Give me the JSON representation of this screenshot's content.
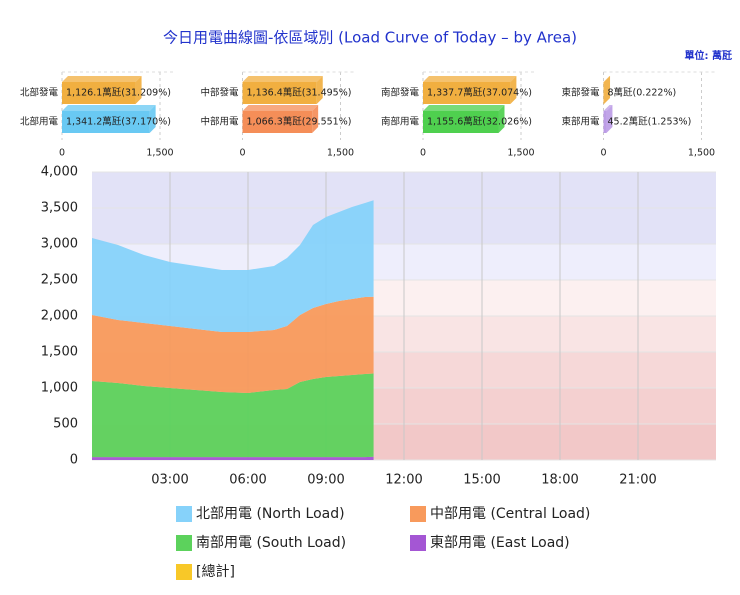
{
  "title": "今日用電曲線圖-依區域別 (Load Curve of Today – by Area)",
  "unit": "單位: 萬瓩",
  "chart_data": [
    {
      "type": "hbar",
      "categories": [
        "北部發電",
        "北部用電"
      ],
      "values": [
        1126.1,
        1341.2
      ],
      "value_labels": [
        "1,126.1萬瓩(31.209%)",
        "1,341.2萬瓩(37.170%)"
      ],
      "colors": [
        "#f0a830",
        "#5cc4f2"
      ],
      "xlim": [
        0,
        1500
      ],
      "xticks": [
        0,
        {
          "value": 1500,
          "label": "1,500"
        }
      ]
    },
    {
      "type": "hbar",
      "categories": [
        "中部發電",
        "中部用電"
      ],
      "values": [
        1136.4,
        1066.3
      ],
      "value_labels": [
        "1,136.4萬瓩(31.495%)",
        "1,066.3萬瓩(29.551%)"
      ],
      "colors": [
        "#f0a830",
        "#f4844a"
      ],
      "xlim": [
        0,
        1500
      ],
      "xticks": [
        0,
        {
          "value": 1500,
          "label": "1,500"
        }
      ]
    },
    {
      "type": "hbar",
      "categories": [
        "南部發電",
        "南部用電"
      ],
      "values": [
        1337.7,
        1155.6
      ],
      "value_labels": [
        "1,337.7萬瓩(37.074%)",
        "1,155.6萬瓩(32.026%)"
      ],
      "colors": [
        "#f0a830",
        "#40cc40"
      ],
      "xlim": [
        0,
        1500
      ],
      "xticks": [
        0,
        {
          "value": 1500,
          "label": "1,500"
        }
      ]
    },
    {
      "type": "hbar",
      "categories": [
        "東部發電",
        "東部用電"
      ],
      "values": [
        8,
        45.2
      ],
      "value_labels": [
        "8萬瓩(0.222%)",
        "45.2萬瓩(1.253%)"
      ],
      "colors": [
        "#f0a830",
        "#b694e4"
      ],
      "xlim": [
        0,
        1500
      ],
      "xticks": [
        0,
        {
          "value": 1500,
          "label": "1,500"
        }
      ]
    },
    {
      "type": "stacked_area",
      "x": [
        0,
        1,
        2,
        3,
        4,
        5,
        6,
        7,
        7.5,
        8,
        8.5,
        9,
        9.5,
        10,
        10.5,
        10.83
      ],
      "xlim": [
        0,
        24
      ],
      "xticks": [
        {
          "value": 3,
          "label": "03:00"
        },
        {
          "value": 6,
          "label": "06:00"
        },
        {
          "value": 9,
          "label": "09:00"
        },
        {
          "value": 12,
          "label": "12:00"
        },
        {
          "value": 15,
          "label": "15:00"
        },
        {
          "value": 18,
          "label": "18:00"
        },
        {
          "value": 21,
          "label": "21:00"
        }
      ],
      "ylim": [
        0,
        4000
      ],
      "yticks": [
        0,
        500,
        {
          "value": 1000,
          "label": "1,000"
        },
        {
          "value": 1500,
          "label": "1,500"
        },
        {
          "value": 2000,
          "label": "2,000"
        },
        {
          "value": 2500,
          "label": "2,500"
        },
        {
          "value": 3000,
          "label": "3,000"
        },
        {
          "value": 3500,
          "label": "3,500"
        },
        {
          "value": 4000,
          "label": "4,000"
        }
      ],
      "plot_bands": [
        {
          "from": 0,
          "to": 500,
          "color": "#f2c8c8"
        },
        {
          "from": 500,
          "to": 1000,
          "color": "#f4d0d0"
        },
        {
          "from": 1000,
          "to": 1500,
          "color": "#f6d8d8"
        },
        {
          "from": 1500,
          "to": 2000,
          "color": "#f9e4e4"
        },
        {
          "from": 2000,
          "to": 2500,
          "color": "#fcf0f0"
        },
        {
          "from": 2500,
          "to": 3000,
          "color": "#eeeefc"
        },
        {
          "from": 3000,
          "to": 3000,
          "color": "#e2e2f7"
        }
      ],
      "series": [
        {
          "name": "北部用電 (North Load)",
          "color": "#86d2fa",
          "values": [
            1069,
            1042,
            944,
            889,
            875,
            861,
            861,
            888,
            945,
            972,
            1153,
            1208,
            1236,
            1278,
            1305,
            1341.2
          ]
        },
        {
          "name": "中部用電 (Central Load)",
          "color": "#f89a5c",
          "values": [
            917,
            875,
            875,
            861,
            847,
            834,
            847,
            834,
            875,
            931,
            986,
            1014,
            1041,
            1055,
            1070,
            1066.3
          ]
        },
        {
          "name": "南部用電 (South Load)",
          "color": "#5cd25c",
          "values": [
            1057,
            1029,
            988,
            960,
            932,
            904,
            891,
            932,
            946,
            1043,
            1085,
            1113,
            1127,
            1141,
            1154,
            1155.6
          ]
        },
        {
          "name": "東部用電 (East Load)",
          "color": "#a456d4",
          "values": [
            40,
            40,
            40,
            40,
            40,
            40,
            40,
            40,
            40,
            40,
            40,
            40,
            40,
            40,
            40,
            45.2
          ]
        }
      ],
      "extra_legend": [
        {
          "name": "[總計]",
          "color": "#f8c828"
        }
      ]
    }
  ]
}
